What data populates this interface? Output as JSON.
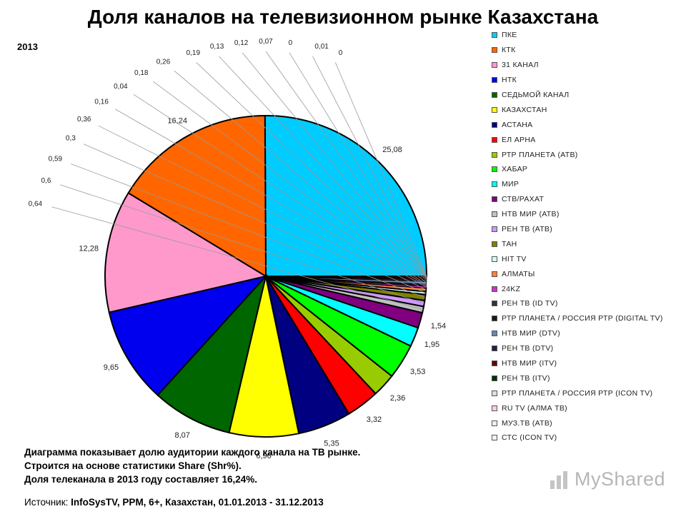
{
  "header": {
    "title": "Доля каналов на телевизионном рынке Казахстана",
    "year": "2013"
  },
  "chart_data": {
    "type": "pie",
    "title": "Доля каналов на телевизионном рынке Казахстана",
    "slices": [
      {
        "label": "ПКЕ",
        "value": 25.08,
        "value_label": "25,08",
        "color": "#00CCFF"
      },
      {
        "label": "КТК",
        "value": 16.24,
        "value_label": "16,24",
        "color": "#FF6600"
      },
      {
        "label": "31 КАНАЛ",
        "value": 12.28,
        "value_label": "12,28",
        "color": "#FF99CC"
      },
      {
        "label": "НТК",
        "value": 9.65,
        "value_label": "9,65",
        "color": "#0000EE"
      },
      {
        "label": "СЕДЬМОЙ КАНАЛ",
        "value": 8.07,
        "value_label": "8,07",
        "color": "#006600"
      },
      {
        "label": "КАЗАХСТАН",
        "value": 6.96,
        "value_label": "6,96",
        "color": "#FFFF00"
      },
      {
        "label": "АСТАНА",
        "value": 5.35,
        "value_label": "5,35",
        "color": "#000080"
      },
      {
        "label": "ЕЛ АРНА",
        "value": 3.32,
        "value_label": "3,32",
        "color": "#FF0000"
      },
      {
        "label": "РТР ПЛАНЕТА (АТВ)",
        "value": 2.36,
        "value_label": "2,36",
        "color": "#99CC00"
      },
      {
        "label": "ХАБАР",
        "value": 3.53,
        "value_label": "3,53",
        "color": "#00FF00"
      },
      {
        "label": "МИР",
        "value": 1.95,
        "value_label": "1,95",
        "color": "#00FFFF"
      },
      {
        "label": "СТВ/РАХАТ",
        "value": 1.54,
        "value_label": "1,54",
        "color": "#800080"
      },
      {
        "label": "НТВ МИР (АТВ)",
        "value": 0.64,
        "value_label": "0,64",
        "color": "#C0C0C0"
      },
      {
        "label": "РЕН ТВ (АТВ)",
        "value": 0.6,
        "value_label": "0,6",
        "color": "#CC99FF"
      },
      {
        "label": "ТАН",
        "value": 0.59,
        "value_label": "0,59",
        "color": "#808000"
      },
      {
        "label": "HIT TV",
        "value": 0.3,
        "value_label": "0,3",
        "color": "#CCFFFF"
      },
      {
        "label": "АЛМАТЫ",
        "value": 0.36,
        "value_label": "0,36",
        "color": "#FF8040"
      },
      {
        "label": "24KZ",
        "value": 0.16,
        "value_label": "0,16",
        "color": "#CC33CC"
      },
      {
        "label": "РЕН ТВ (ID TV)",
        "value": 0.04,
        "value_label": "0,04",
        "color": "#333333"
      },
      {
        "label": "РТР ПЛАНЕТА / РОССИЯ РТР (DIGITAL TV)",
        "value": 0.18,
        "value_label": "0,18",
        "color": "#1A1A1A"
      },
      {
        "label": "НТВ МИР (DTV)",
        "value": 0.26,
        "value_label": "0,26",
        "color": "#6688AA"
      },
      {
        "label": "РЕН ТВ (DTV)",
        "value": 0.19,
        "value_label": "0,19",
        "color": "#222244"
      },
      {
        "label": "НТВ МИР (ITV)",
        "value": 0.13,
        "value_label": "0,13",
        "color": "#660000"
      },
      {
        "label": "РЕН ТВ (ITV)",
        "value": 0.12,
        "value_label": "0,12",
        "color": "#003300"
      },
      {
        "label": "РТР ПЛАНЕТА / РОССИЯ РТР (ICON TV)",
        "value": 0.07,
        "value_label": "0,07",
        "color": "#DDDDDD"
      },
      {
        "label": "RU TV (АЛМА ТВ)",
        "value": 0,
        "value_label": "0",
        "color": "#FFCCEE"
      },
      {
        "label": "МУЗ.ТВ (АТВ)",
        "value": 0.01,
        "value_label": "0,01",
        "color": "#EEEEEE"
      },
      {
        "label": "СТС (ICON TV)",
        "value": 0,
        "value_label": "0",
        "color": "#F4F4F4"
      }
    ],
    "legend_placement": "right"
  },
  "caption": {
    "line1": "Диаграмма показывает долю аудитории каждого канала на ТВ рынке.",
    "line2": "Строится на основе статистики Share (Shr%).",
    "line3": "Доля телеканала в 2013 году составляет 16,24%."
  },
  "source": {
    "label": "Источник:",
    "value": "InfoSysTV, PPM, 6+, Казахстан, 01.01.2013 - 31.12.2013"
  },
  "watermark": {
    "text": "MyShared",
    "icon": "bar-chart-icon"
  }
}
